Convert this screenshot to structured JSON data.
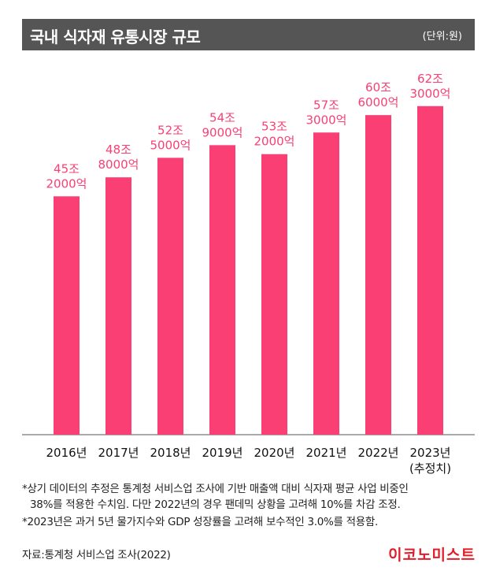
{
  "title": "국내 식자재 유통시장 규모",
  "unit": "(단위:원)",
  "chart_data": {
    "type": "bar",
    "categories": [
      "2016년",
      "2017년",
      "2018년",
      "2019년",
      "2020년",
      "2021년",
      "2022년",
      "2023년"
    ],
    "category_sublabels": [
      "",
      "",
      "",
      "",
      "",
      "",
      "",
      "(추정치)"
    ],
    "values": [
      45.2,
      48.8,
      52.5,
      54.9,
      53.2,
      57.3,
      60.6,
      62.3
    ],
    "value_unit": "조원",
    "data_labels": [
      [
        "45조",
        "2000억"
      ],
      [
        "48조",
        "8000억"
      ],
      [
        "52조",
        "5000억"
      ],
      [
        "54조",
        "9000억"
      ],
      [
        "53조",
        "2000억"
      ],
      [
        "57조",
        "3000억"
      ],
      [
        "60조",
        "6000억"
      ],
      [
        "62조",
        "3000억"
      ]
    ],
    "ylim": [
      0,
      66
    ],
    "bar_color": "#fa3f74",
    "label_color": "#fa3f74",
    "grid": false
  },
  "notes": [
    [
      "*상기 데이터의 추정은 통계청 서비스업 조사에 기반 매출액 대비 식자재 평균 사업 비중인",
      "38%를 적용한 수치임. 다만 2022년의 경우 팬데믹 상황을 고려해 10%를 차감 조정."
    ],
    [
      "*2023년은 과거 5년 물가지수와 GDP 성장률을 고려해 보수적인 3.0%를 적용함."
    ]
  ],
  "source": "자료:통계청 서비스업 조사(2022)",
  "logo": "이코노미스트",
  "colors": {
    "title_bar": "#555555",
    "bar": "#fa3f74",
    "logo": "#e11d2a"
  }
}
